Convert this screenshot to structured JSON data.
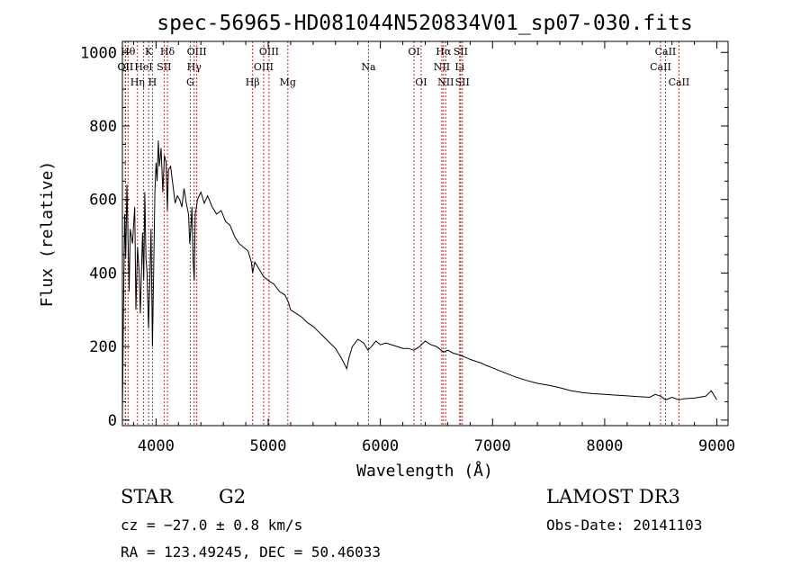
{
  "chart_data": {
    "type": "line",
    "title": "spec-56965-HD081044N520834V01_sp07-030.fits",
    "xlabel": "Wavelength (Å)",
    "ylabel": "Flux (relative)",
    "xlim": [
      3700,
      9100
    ],
    "ylim": [
      -15,
      1030
    ],
    "x_ticks": [
      4000,
      5000,
      6000,
      7000,
      8000,
      9000
    ],
    "x_tick_labels": [
      "4000",
      "5000",
      "6000",
      "7000",
      "8000",
      "9000"
    ],
    "y_ticks": [
      0,
      200,
      400,
      600,
      800,
      1000
    ],
    "y_tick_labels": [
      "0",
      "200",
      "400",
      "600",
      "800",
      "1000"
    ],
    "grid": false,
    "series": [
      {
        "color": "#000000",
        "points": [
          [
            3700,
            10
          ],
          [
            3710,
            300
          ],
          [
            3720,
            560
          ],
          [
            3730,
            440
          ],
          [
            3740,
            640
          ],
          [
            3750,
            500
          ],
          [
            3760,
            350
          ],
          [
            3770,
            520
          ],
          [
            3790,
            480
          ],
          [
            3810,
            580
          ],
          [
            3820,
            300
          ],
          [
            3835,
            470
          ],
          [
            3850,
            400
          ],
          [
            3860,
            290
          ],
          [
            3880,
            510
          ],
          [
            3890,
            380
          ],
          [
            3900,
            620
          ],
          [
            3910,
            440
          ],
          [
            3920,
            400
          ],
          [
            3933,
            250
          ],
          [
            3945,
            380
          ],
          [
            3955,
            520
          ],
          [
            3968,
            200
          ],
          [
            3980,
            430
          ],
          [
            3990,
            620
          ],
          [
            4000,
            700
          ],
          [
            4010,
            650
          ],
          [
            4020,
            760
          ],
          [
            4030,
            690
          ],
          [
            4045,
            740
          ],
          [
            4060,
            620
          ],
          [
            4075,
            720
          ],
          [
            4090,
            700
          ],
          [
            4101,
            570
          ],
          [
            4110,
            680
          ],
          [
            4130,
            690
          ],
          [
            4150,
            640
          ],
          [
            4170,
            590
          ],
          [
            4190,
            610
          ],
          [
            4210,
            600
          ],
          [
            4230,
            580
          ],
          [
            4250,
            630
          ],
          [
            4270,
            590
          ],
          [
            4290,
            560
          ],
          [
            4300,
            480
          ],
          [
            4310,
            520
          ],
          [
            4320,
            580
          ],
          [
            4330,
            440
          ],
          [
            4340,
            380
          ],
          [
            4350,
            560
          ],
          [
            4370,
            600
          ],
          [
            4400,
            620
          ],
          [
            4430,
            590
          ],
          [
            4460,
            610
          ],
          [
            4500,
            580
          ],
          [
            4540,
            560
          ],
          [
            4580,
            570
          ],
          [
            4620,
            540
          ],
          [
            4660,
            530
          ],
          [
            4700,
            500
          ],
          [
            4740,
            480
          ],
          [
            4780,
            470
          ],
          [
            4820,
            460
          ],
          [
            4850,
            430
          ],
          [
            4861,
            400
          ],
          [
            4880,
            430
          ],
          [
            4920,
            410
          ],
          [
            4960,
            390
          ],
          [
            5000,
            380
          ],
          [
            5050,
            370
          ],
          [
            5100,
            350
          ],
          [
            5150,
            340
          ],
          [
            5180,
            320
          ],
          [
            5200,
            300
          ],
          [
            5250,
            290
          ],
          [
            5300,
            280
          ],
          [
            5350,
            265
          ],
          [
            5400,
            255
          ],
          [
            5450,
            240
          ],
          [
            5500,
            225
          ],
          [
            5550,
            210
          ],
          [
            5600,
            195
          ],
          [
            5650,
            170
          ],
          [
            5700,
            140
          ],
          [
            5720,
            170
          ],
          [
            5750,
            200
          ],
          [
            5800,
            220
          ],
          [
            5850,
            210
          ],
          [
            5890,
            190
          ],
          [
            5920,
            200
          ],
          [
            5960,
            215
          ],
          [
            6000,
            205
          ],
          [
            6050,
            210
          ],
          [
            6100,
            205
          ],
          [
            6150,
            200
          ],
          [
            6200,
            195
          ],
          [
            6250,
            195
          ],
          [
            6300,
            190
          ],
          [
            6350,
            200
          ],
          [
            6400,
            215
          ],
          [
            6450,
            205
          ],
          [
            6500,
            200
          ],
          [
            6563,
            185
          ],
          [
            6600,
            190
          ],
          [
            6650,
            182
          ],
          [
            6700,
            178
          ],
          [
            6750,
            172
          ],
          [
            6800,
            165
          ],
          [
            6850,
            160
          ],
          [
            6900,
            155
          ],
          [
            6950,
            148
          ],
          [
            7000,
            142
          ],
          [
            7100,
            130
          ],
          [
            7200,
            118
          ],
          [
            7300,
            108
          ],
          [
            7400,
            100
          ],
          [
            7500,
            95
          ],
          [
            7600,
            88
          ],
          [
            7700,
            80
          ],
          [
            7800,
            75
          ],
          [
            7900,
            72
          ],
          [
            8000,
            70
          ],
          [
            8100,
            68
          ],
          [
            8200,
            66
          ],
          [
            8300,
            64
          ],
          [
            8400,
            62
          ],
          [
            8450,
            70
          ],
          [
            8500,
            65
          ],
          [
            8542,
            55
          ],
          [
            8600,
            62
          ],
          [
            8662,
            55
          ],
          [
            8700,
            58
          ],
          [
            8800,
            60
          ],
          [
            8900,
            65
          ],
          [
            8950,
            80
          ],
          [
            9000,
            55
          ]
        ]
      }
    ],
    "line_markers": [
      {
        "name": "OII",
        "x": 3727,
        "row": 2
      },
      {
        "name": "Hθ",
        "x": 3750,
        "row": 1
      },
      {
        "name": "OII",
        "x": 3727,
        "row": 2
      },
      {
        "name": "Hη",
        "x": 3835,
        "row": 3
      },
      {
        "name": "HeI",
        "x": 3889,
        "row": 2
      },
      {
        "name": "K",
        "x": 3934,
        "row": 1
      },
      {
        "name": "H",
        "x": 3968,
        "row": 3
      },
      {
        "name": "SII",
        "x": 4072,
        "row": 2
      },
      {
        "name": "Hδ",
        "x": 4101,
        "row": 1
      },
      {
        "name": "G",
        "x": 4305,
        "row": 3
      },
      {
        "name": "Hγ",
        "x": 4340,
        "row": 2
      },
      {
        "name": "OIII",
        "x": 4363,
        "row": 1
      },
      {
        "name": "Hβ",
        "x": 4861,
        "row": 3
      },
      {
        "name": "OIII",
        "x": 4959,
        "row": 2
      },
      {
        "name": "OIII",
        "x": 5007,
        "row": 1
      },
      {
        "name": "Mg",
        "x": 5175,
        "row": 3
      },
      {
        "name": "Na",
        "x": 5894,
        "row": 2
      },
      {
        "name": "OI",
        "x": 6300,
        "row": 1
      },
      {
        "name": "OI",
        "x": 6363,
        "row": 3
      },
      {
        "name": "NII",
        "x": 6548,
        "row": 2
      },
      {
        "name": "Hα",
        "x": 6563,
        "row": 1
      },
      {
        "name": "NII",
        "x": 6583,
        "row": 3
      },
      {
        "name": "Li",
        "x": 6707,
        "row": 2
      },
      {
        "name": "SII",
        "x": 6716,
        "row": 1
      },
      {
        "name": "SII",
        "x": 6731,
        "row": 3
      },
      {
        "name": "CaII",
        "x": 8498,
        "row": 2
      },
      {
        "name": "CaII",
        "x": 8542,
        "row": 1
      },
      {
        "name": "CaII",
        "x": 8662,
        "row": 3
      }
    ],
    "marker_color": "#cc2222"
  },
  "info": {
    "class_label": "STAR",
    "subclass": "G2",
    "redshift": "cz = −27.0 ± 0.8 km/s",
    "coords": "RA = 123.49245, DEC =  50.46033",
    "survey": "LAMOST DR3",
    "obs_date": "Obs-Date: 20141103"
  }
}
